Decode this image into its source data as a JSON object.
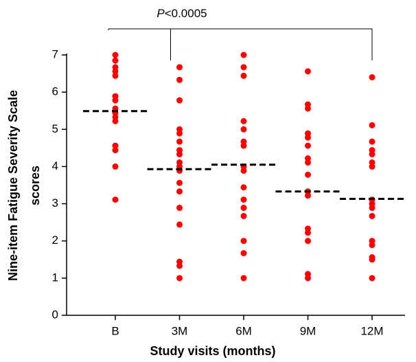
{
  "chart_data": {
    "type": "strip",
    "annotation": {
      "italic": "P",
      "text": "<0.0005"
    },
    "xlabel": "Study visits (months)",
    "ylabel": [
      "Nine-item Fatigue Severity Scale",
      "scores"
    ],
    "categories": [
      "B",
      "3M",
      "6M",
      "9M",
      "12M"
    ],
    "color": "#ff0000",
    "values": [
      [
        7.0,
        6.85,
        6.67,
        6.56,
        6.44,
        5.89,
        5.78,
        5.56,
        5.44,
        5.33,
        5.22,
        4.56,
        4.44,
        4.0,
        3.11
      ],
      [
        6.67,
        6.33,
        5.78,
        5.0,
        4.89,
        4.67,
        4.44,
        4.33,
        4.11,
        4.0,
        3.89,
        3.56,
        3.33,
        2.89,
        2.44,
        1.44,
        1.33,
        1.0
      ],
      [
        7.0,
        6.67,
        6.44,
        5.22,
        5.0,
        4.67,
        4.56,
        4.0,
        3.89,
        3.44,
        3.11,
        2.89,
        2.67,
        2.0,
        1.67,
        1.0
      ],
      [
        6.56,
        5.67,
        5.56,
        4.89,
        4.78,
        4.56,
        4.22,
        4.11,
        3.78,
        3.33,
        3.22,
        2.33,
        2.22,
        2.0,
        1.11,
        1.0
      ],
      [
        6.4,
        5.11,
        4.67,
        4.44,
        4.33,
        4.11,
        4.0,
        3.11,
        3.0,
        2.89,
        2.67,
        2.0,
        1.89,
        1.56,
        1.5,
        1.0
      ]
    ],
    "means": [
      5.49,
      3.93,
      4.05,
      3.33,
      3.13
    ],
    "mean_color": "#000000",
    "ylim": [
      0,
      7
    ],
    "yticks": [
      0,
      1,
      2,
      3,
      4,
      5,
      6,
      7
    ]
  }
}
